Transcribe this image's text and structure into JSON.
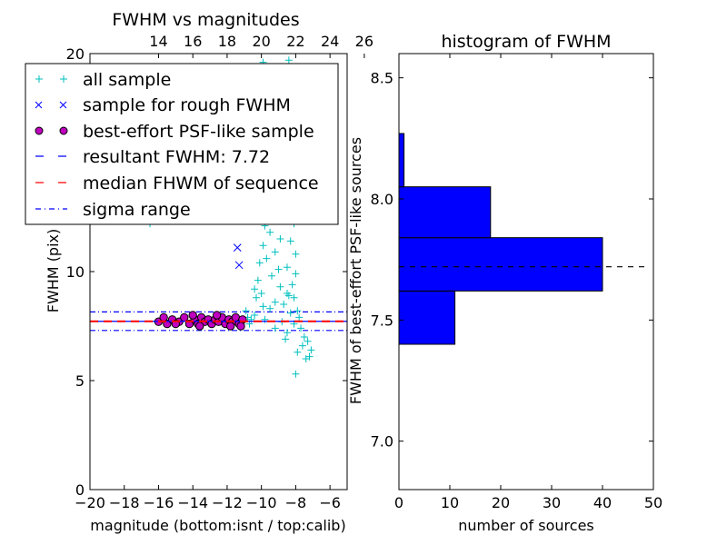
{
  "chart_data": [
    {
      "type": "scatter",
      "title": "FWHM vs magnitudes",
      "xlabel": "magnitude (bottom:isnt / top:calib)",
      "ylabel": "FWHM (pix)",
      "xlim": [
        -20,
        -5
      ],
      "ylim": [
        0,
        20
      ],
      "x_ticks": [
        -20,
        -18,
        -16,
        -14,
        -12,
        -10,
        -8,
        -6
      ],
      "x_tick_labels": [
        "−20",
        "−18",
        "−16",
        "−14",
        "−12",
        "−10",
        "−8",
        "−6"
      ],
      "y_ticks": [
        0,
        5,
        10,
        20
      ],
      "y_tick_labels": [
        "0",
        "5",
        "10",
        "20"
      ],
      "top_axis": {
        "offset": 30,
        "ticks": [
          14,
          16,
          18,
          20,
          22,
          24,
          26
        ],
        "tick_labels": [
          "14",
          "16",
          "18",
          "20",
          "22",
          "24",
          "26"
        ]
      },
      "series": [
        {
          "name": "all sample",
          "marker": "+",
          "color": "#00bfbf",
          "points": [
            [
              -16.5,
              12.2
            ],
            [
              -10.8,
              7.9
            ],
            [
              -10.9,
              8.2
            ],
            [
              -10.7,
              7.6
            ],
            [
              -10.4,
              8.0
            ],
            [
              -10.3,
              8.8
            ],
            [
              -10.2,
              9.6
            ],
            [
              -10.4,
              9.2
            ],
            [
              -10.1,
              10.4
            ],
            [
              -10.0,
              9.0
            ],
            [
              -9.9,
              11.2
            ],
            [
              -9.8,
              12.1
            ],
            [
              -9.9,
              8.4
            ],
            [
              -9.7,
              10.6
            ],
            [
              -9.6,
              13.0
            ],
            [
              -9.5,
              11.8
            ],
            [
              -9.4,
              9.8
            ],
            [
              -9.6,
              14.2
            ],
            [
              -9.3,
              12.5
            ],
            [
              -9.2,
              10.9
            ],
            [
              -9.1,
              15.2
            ],
            [
              -9.0,
              13.6
            ],
            [
              -9.2,
              8.6
            ],
            [
              -8.9,
              11.5
            ],
            [
              -8.8,
              16.1
            ],
            [
              -8.7,
              14.4
            ],
            [
              -8.6,
              12.7
            ],
            [
              -8.9,
              17.2
            ],
            [
              -8.5,
              10.2
            ],
            [
              -8.4,
              13.9
            ],
            [
              -8.3,
              11.4
            ],
            [
              -8.6,
              15.8
            ],
            [
              -8.2,
              9.4
            ],
            [
              -8.1,
              12.2
            ],
            [
              -8.3,
              16.8
            ],
            [
              -8.0,
              10.8
            ],
            [
              -8.4,
              8.9
            ],
            [
              -8.2,
              14.7
            ],
            [
              -7.9,
              8.2
            ],
            [
              -8.1,
              7.6
            ],
            [
              -8.5,
              7.2
            ],
            [
              -7.8,
              7.9
            ],
            [
              -8.7,
              8.5
            ],
            [
              -8.0,
              9.9
            ],
            [
              -7.7,
              7.4
            ],
            [
              -7.5,
              7.0
            ],
            [
              -7.3,
              6.8
            ],
            [
              -7.1,
              6.4
            ],
            [
              -7.4,
              6.0
            ],
            [
              -7.6,
              6.6
            ],
            [
              -8.0,
              5.3
            ],
            [
              -7.2,
              6.1
            ],
            [
              -7.9,
              6.3
            ],
            [
              -8.6,
              6.9
            ],
            [
              -9.1,
              17.9
            ],
            [
              -8.8,
              19.0
            ],
            [
              -9.4,
              18.4
            ],
            [
              -8.4,
              19.7
            ],
            [
              -9.7,
              16.8
            ],
            [
              -10.0,
              15.6
            ],
            [
              -10.2,
              14.5
            ],
            [
              -9.9,
              19.6
            ],
            [
              -8.6,
              18.6
            ],
            [
              -9.3,
              16.3
            ],
            [
              -8.9,
              9.3
            ],
            [
              -9.0,
              10.1
            ],
            [
              -9.5,
              8.3
            ],
            [
              -9.8,
              7.8
            ],
            [
              -10.6,
              7.8
            ],
            [
              -8.3,
              8.1
            ],
            [
              -8.8,
              7.7
            ],
            [
              -9.2,
              7.4
            ],
            [
              -8.5,
              9.0
            ],
            [
              -8.1,
              8.8
            ]
          ]
        },
        {
          "name": "sample for rough FWHM",
          "marker": "x",
          "color": "#0000ff",
          "points": [
            [
              -11.4,
              11.1
            ],
            [
              -11.3,
              10.3
            ]
          ]
        },
        {
          "name": "best-effort PSF-like sample",
          "marker": "o",
          "color": "#bf00bf",
          "points": [
            [
              -16.0,
              7.7
            ],
            [
              -15.7,
              7.9
            ],
            [
              -15.5,
              7.6
            ],
            [
              -15.2,
              7.8
            ],
            [
              -14.8,
              7.7
            ],
            [
              -14.5,
              7.9
            ],
            [
              -14.2,
              7.6
            ],
            [
              -13.9,
              7.8
            ],
            [
              -13.7,
              7.6
            ],
            [
              -13.5,
              7.9
            ],
            [
              -13.3,
              7.7
            ],
            [
              -13.1,
              7.8
            ],
            [
              -12.9,
              7.6
            ],
            [
              -12.7,
              7.8
            ],
            [
              -12.5,
              7.7
            ],
            [
              -12.3,
              7.9
            ],
            [
              -12.1,
              7.6
            ],
            [
              -11.9,
              7.8
            ],
            [
              -11.7,
              7.7
            ],
            [
              -11.5,
              7.9
            ],
            [
              -11.3,
              7.6
            ],
            [
              -11.1,
              7.8
            ],
            [
              -14.0,
              8.0
            ],
            [
              -12.6,
              8.0
            ],
            [
              -11.8,
              7.5
            ],
            [
              -13.6,
              7.5
            ],
            [
              -15.0,
              7.6
            ],
            [
              -11.2,
              7.5
            ]
          ]
        },
        {
          "name": "resultant FWHM: 7.72",
          "line": "dashed",
          "color": "#0000ff",
          "y": 7.72
        },
        {
          "name": "median FHWM of sequence",
          "line": "dashed",
          "color": "#ff0000",
          "y": 7.72
        },
        {
          "name": "sigma range",
          "line": "dashdot",
          "color": "#0000ff",
          "y_values": [
            7.3,
            8.15
          ]
        }
      ]
    },
    {
      "type": "bar",
      "orientation": "horizontal",
      "title": "histogram of FWHM",
      "xlabel": "number of sources",
      "ylabel": "FWHM of best-effort PSF-like sources",
      "xlim": [
        0,
        50
      ],
      "ylim": [
        6.8,
        8.6
      ],
      "x_ticks": [
        0,
        10,
        20,
        30,
        40,
        50
      ],
      "x_tick_labels": [
        "0",
        "10",
        "20",
        "30",
        "40",
        "50"
      ],
      "y_ticks": [
        7.0,
        7.5,
        8.0,
        8.5
      ],
      "y_tick_labels": [
        "7.0",
        "7.5",
        "8.0",
        "8.5"
      ],
      "bar_color": "#0000ff",
      "bins": [
        {
          "from": 7.4,
          "to": 7.62,
          "count": 11
        },
        {
          "from": 7.62,
          "to": 7.84,
          "count": 40
        },
        {
          "from": 7.84,
          "to": 8.05,
          "count": 18
        },
        {
          "from": 8.05,
          "to": 8.27,
          "count": 1
        }
      ],
      "reference_line": {
        "y": 7.72,
        "style": "dashed",
        "color": "#000000"
      }
    }
  ]
}
